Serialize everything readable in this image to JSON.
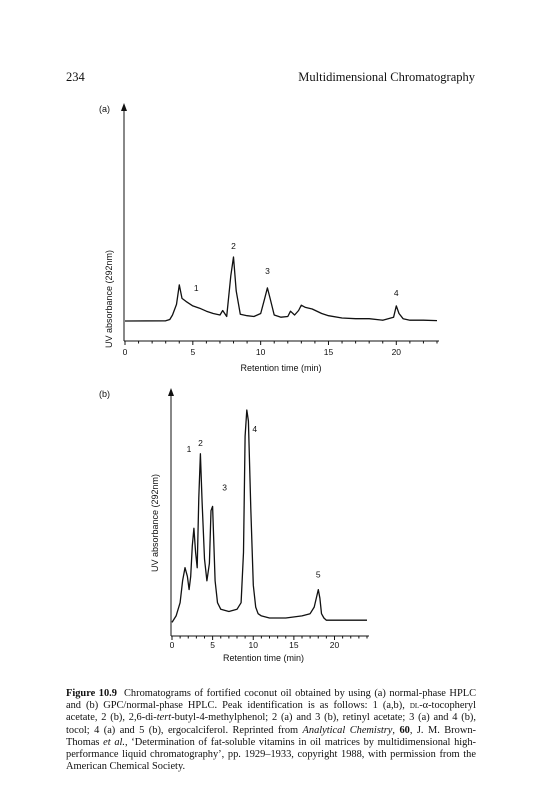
{
  "header": {
    "page_number": "234",
    "running_title": "Multidimensional Chromatography"
  },
  "chart_data": [
    {
      "type": "line",
      "panel_label": "(a)",
      "xlabel": "Retention time (min)",
      "ylabel": "UV absorbance (292nm)",
      "xlim": [
        0,
        23
      ],
      "x_ticks": [
        0,
        5,
        10,
        15,
        20
      ],
      "x_tick_labels": [
        "0",
        "5",
        "10",
        "15",
        "20"
      ],
      "grid": false,
      "series": [
        {
          "x": [
            0,
            3,
            3.3,
            3.5,
            3.8,
            4.0,
            4.2,
            4.5,
            5.0,
            5.5,
            6.0,
            6.5,
            7.0,
            7.2,
            7.5,
            7.8,
            8.0,
            8.2,
            8.5,
            9.0,
            9.5,
            10.0,
            10.3,
            10.5,
            10.7,
            11.0,
            11.5,
            12.0,
            12.2,
            12.5,
            12.8,
            13.0,
            13.3,
            13.8,
            14.5,
            15.0,
            16.0,
            17.0,
            18.0,
            19.0,
            19.8,
            20.0,
            20.2,
            20.5,
            21.0,
            22.0,
            23.0
          ],
          "y": [
            0,
            0.3,
            2,
            8,
            22,
            48,
            30,
            26,
            20,
            17,
            13,
            10,
            8,
            14,
            6,
            60,
            85,
            40,
            9,
            7,
            6,
            10,
            30,
            44,
            30,
            8,
            5,
            6,
            13,
            8,
            14,
            21,
            18,
            16,
            10,
            7,
            4,
            3,
            3,
            1,
            5,
            20,
            10,
            3,
            1,
            1,
            0.5
          ]
        }
      ],
      "peaks": [
        {
          "label": "1",
          "x": 4.0
        },
        {
          "label": "2",
          "x": 8.0
        },
        {
          "label": "3",
          "x": 10.5
        },
        {
          "label": "4",
          "x": 20.0
        }
      ]
    },
    {
      "type": "line",
      "panel_label": "(b)",
      "xlabel": "Retention time (min)",
      "ylabel": "UV absorbance (292nm)",
      "xlim": [
        0,
        24
      ],
      "x_ticks": [
        0,
        5,
        10,
        15,
        20
      ],
      "x_tick_labels": [
        "0",
        "5",
        "10",
        "15",
        "20"
      ],
      "grid": false,
      "series": [
        {
          "x": [
            0,
            0.5,
            1.0,
            1.3,
            1.6,
            1.9,
            2.1,
            2.3,
            2.5,
            2.7,
            2.9,
            3.1,
            3.3,
            3.5,
            3.7,
            4.0,
            4.3,
            4.6,
            4.8,
            5.0,
            5.3,
            5.6,
            6.0,
            7.0,
            8.0,
            8.5,
            8.8,
            9.0,
            9.2,
            9.4,
            9.7,
            10.0,
            10.3,
            10.6,
            11.0,
            12.0,
            14.0,
            16.0,
            17.0,
            17.5,
            18.0,
            18.2,
            18.4,
            18.7,
            19.0,
            20.0,
            22.0,
            24.0
          ],
          "y": [
            3,
            6,
            12,
            22,
            28,
            24,
            18,
            24,
            38,
            46,
            35,
            28,
            60,
            80,
            58,
            32,
            22,
            30,
            54,
            56,
            22,
            12,
            9,
            8,
            9,
            12,
            35,
            88,
            100,
            95,
            55,
            20,
            10,
            7,
            6,
            5,
            5,
            6,
            7,
            10,
            18,
            14,
            7,
            5,
            4,
            4,
            4,
            4
          ]
        }
      ],
      "peaks": [
        {
          "label": "1",
          "x": 2.7
        },
        {
          "label": "2",
          "x": 3.5
        },
        {
          "label": "3",
          "x": 5.0
        },
        {
          "label": "4",
          "x": 9.2
        },
        {
          "label": "5",
          "x": 18.0
        }
      ]
    }
  ],
  "caption": {
    "label": "Figure 10.9",
    "t1": "Chromatograms of fortified coconut oil obtained by using (a) normal-phase HPLC and (b) GPC/normal-phase HPLC. Peak identification is as follows: 1 (a,b), ",
    "sc_dl": "dl",
    "t2": "-α-tocopheryl acetate, 2 (b), 2,6-di-",
    "tert": "tert",
    "t3": "-butyl-4-methylphenol; 2 (a) and 3 (b), retinyl acetate; 3 (a) and 4 (b), tocol; 4 (a) and 5 (b), ergocalciferol. Reprinted from ",
    "journal": "Analytical Chemistry",
    "t4": ", ",
    "volume": "60",
    "t5": ", J. M. Brown-Thomas ",
    "etal": "et al.",
    "t6": ", ‘Determination of fat-soluble vitamins in oil matrices by multidimensional high-performance liquid chromatography’, pp. 1929–1933, copyright 1988, with permission from the American Chemical Society."
  }
}
